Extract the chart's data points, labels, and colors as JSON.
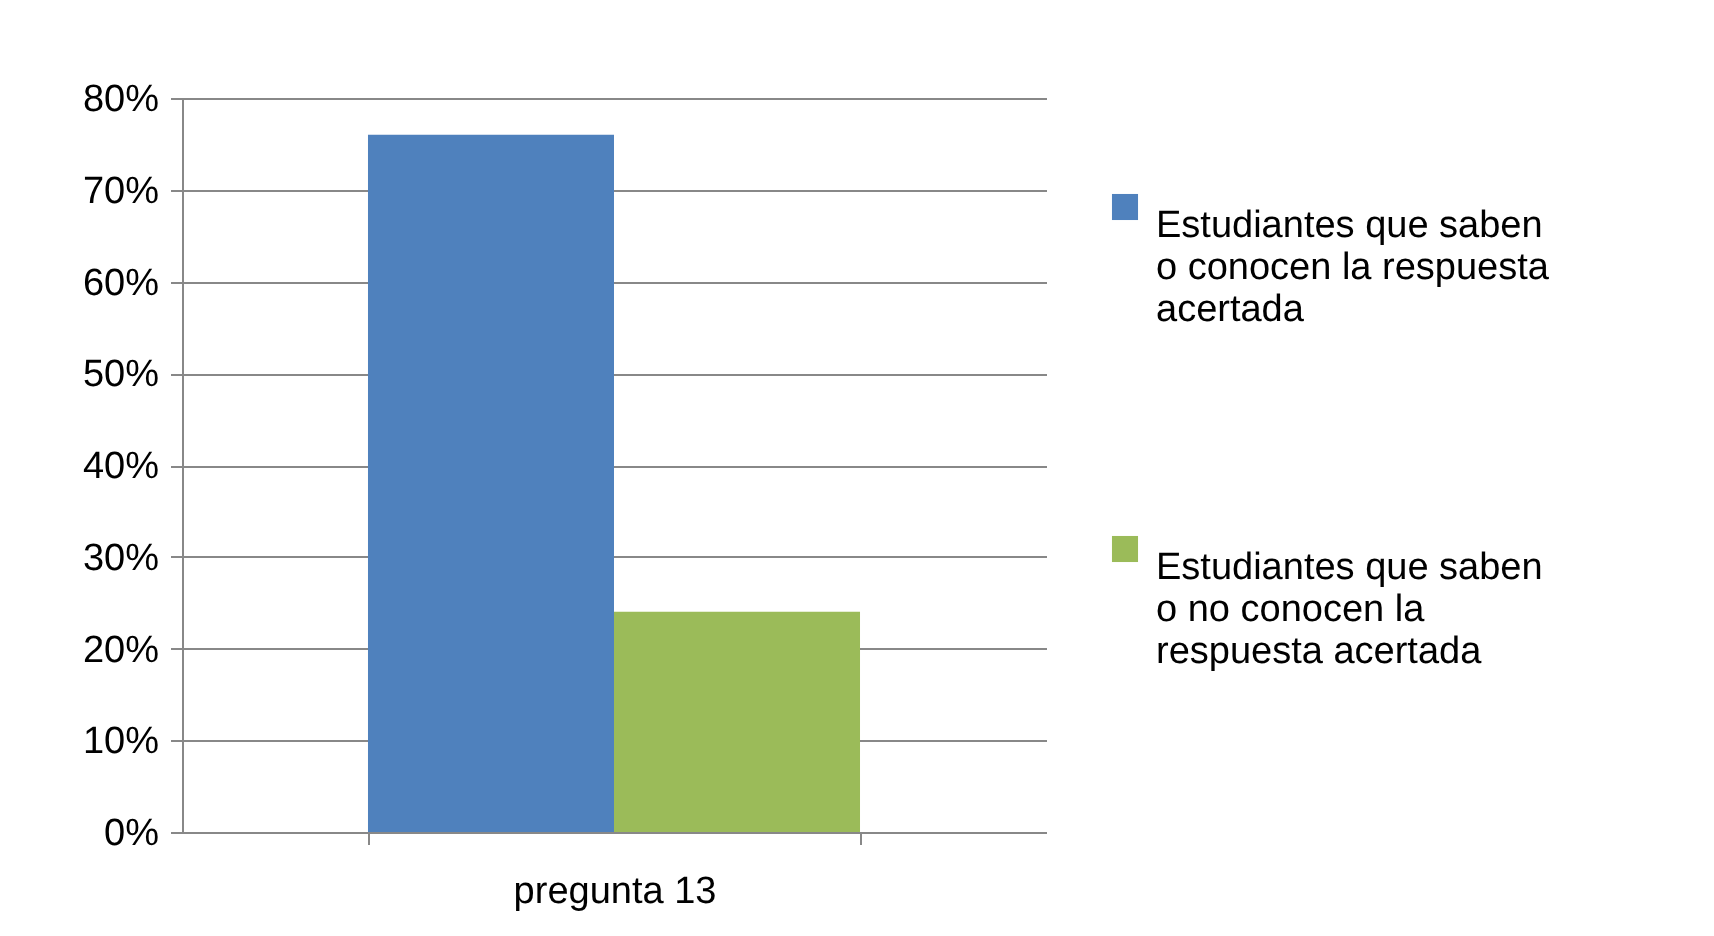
{
  "chart_data": {
    "type": "bar",
    "categories": [
      "pregunta 13"
    ],
    "series": [
      {
        "name": "Estudiantes que saben o conocen la respuesta acertada",
        "color": "#4f81bd",
        "values": [
          76
        ]
      },
      {
        "name": "Estudiantes que saben o no conocen la respuesta acertada",
        "color": "#9bbb59",
        "values": [
          24
        ]
      }
    ],
    "ylim": [
      0,
      80
    ],
    "yticks": [
      {
        "value": 0,
        "label": "0%"
      },
      {
        "value": 10,
        "label": "10%"
      },
      {
        "value": 20,
        "label": "20%"
      },
      {
        "value": 30,
        "label": "30%"
      },
      {
        "value": 40,
        "label": "40%"
      },
      {
        "value": 50,
        "label": "50%"
      },
      {
        "value": 60,
        "label": "60%"
      },
      {
        "value": 70,
        "label": "70%"
      },
      {
        "value": 80,
        "label": "80%"
      }
    ],
    "grid": "y",
    "legend": "right"
  }
}
